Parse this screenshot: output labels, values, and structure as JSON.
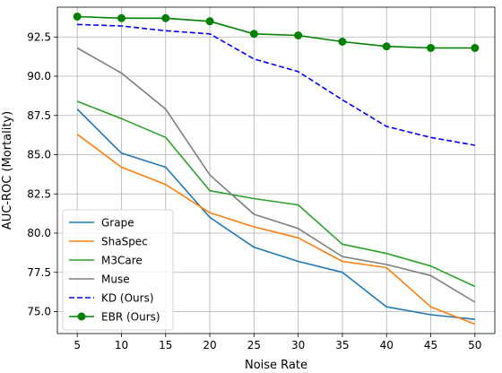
{
  "chart_data": {
    "type": "line",
    "title": "",
    "xlabel": "Noise Rate",
    "ylabel": "AUC-ROC (Mortality)",
    "x": [
      5,
      10,
      15,
      20,
      25,
      30,
      35,
      40,
      45,
      50
    ],
    "x_ticks": [
      "5",
      "10",
      "15",
      "20",
      "25",
      "30",
      "35",
      "40",
      "45",
      "50"
    ],
    "y_ticks": [
      "75.0",
      "77.5",
      "80.0",
      "82.5",
      "85.0",
      "87.5",
      "90.0",
      "92.5"
    ],
    "xlim": [
      2.75,
      52.25
    ],
    "ylim": [
      73.6,
      94.4
    ],
    "grid": true,
    "legend_position": "lower-left",
    "series": [
      {
        "name": "Grape",
        "color": "#1f77b4",
        "style": "solid",
        "marker": "none",
        "values": [
          87.9,
          85.1,
          84.2,
          81.0,
          79.1,
          78.2,
          77.5,
          75.3,
          74.8,
          74.5
        ]
      },
      {
        "name": "ShaSpec",
        "color": "#ff7f0e",
        "style": "solid",
        "marker": "none",
        "values": [
          86.3,
          84.2,
          83.1,
          81.3,
          80.4,
          79.7,
          78.2,
          77.8,
          75.3,
          74.2
        ]
      },
      {
        "name": "M3Care",
        "color": "#2ca02c",
        "style": "solid",
        "marker": "none",
        "values": [
          88.4,
          87.3,
          86.1,
          82.7,
          82.2,
          81.8,
          79.3,
          78.7,
          77.9,
          76.6
        ]
      },
      {
        "name": "Muse",
        "color": "#7f7f7f",
        "style": "solid",
        "marker": "none",
        "values": [
          91.8,
          90.2,
          87.9,
          83.7,
          81.2,
          80.3,
          78.5,
          78.0,
          77.3,
          75.6
        ]
      },
      {
        "name": "KD (Ours)",
        "color": "#0000ff",
        "style": "dashed",
        "marker": "none",
        "values": [
          93.3,
          93.2,
          92.9,
          92.7,
          91.1,
          90.3,
          88.5,
          86.8,
          86.1,
          85.6
        ]
      },
      {
        "name": "EBR (Ours)",
        "color": "#008000",
        "style": "solid",
        "marker": "circle",
        "values": [
          93.8,
          93.7,
          93.7,
          93.5,
          92.7,
          92.6,
          92.2,
          91.9,
          91.8,
          91.8
        ]
      }
    ]
  }
}
